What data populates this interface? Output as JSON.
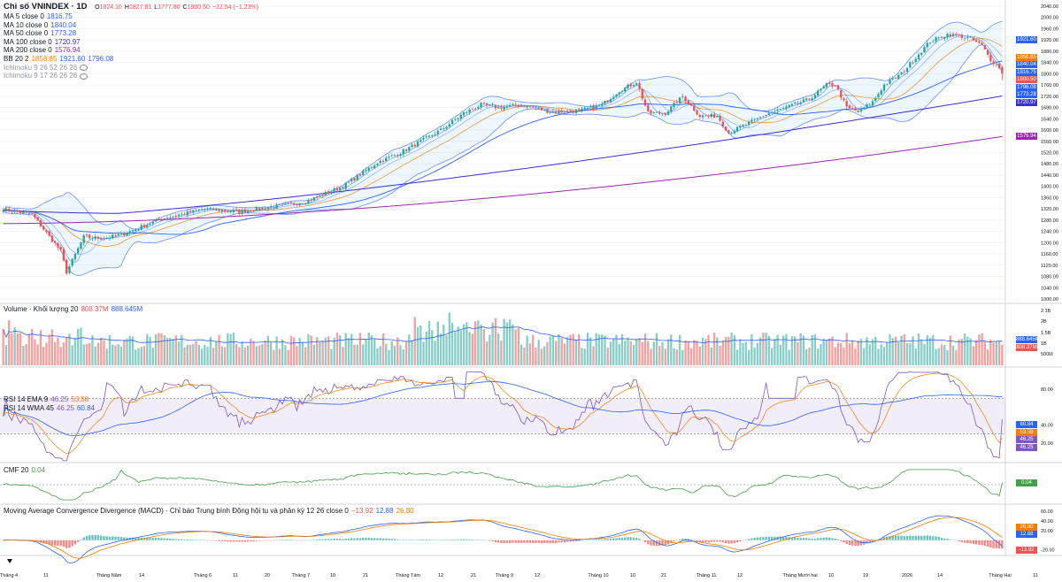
{
  "header": {
    "title": "Chỉ số VNINDEX · 1D",
    "ohlc": [
      {
        "k": "O",
        "v": "1824.10"
      },
      {
        "k": "H",
        "v": "1827.81"
      },
      {
        "k": "L",
        "v": "1777.80"
      },
      {
        "k": "C",
        "v": "1800.50"
      },
      {
        "k": "",
        "v": "−22.54 (−1.23%)"
      }
    ]
  },
  "indicators_main": [
    {
      "label": "MA 5 close 0",
      "values": [
        "1816.75"
      ],
      "color": "#2962ff"
    },
    {
      "label": "MA 10 close 0",
      "values": [
        "1840.04"
      ],
      "color": "#2962ff"
    },
    {
      "label": "MA 50 close 0",
      "values": [
        "1773.28"
      ],
      "color": "#2962ff"
    },
    {
      "label": "MA 100 close 0",
      "values": [
        "1720.97"
      ],
      "color": "#3b2fd4"
    },
    {
      "label": "MA 200 close 0",
      "values": [
        "1576.94"
      ],
      "color": "#9c27b0"
    },
    {
      "label": "BB 20 2",
      "values": [
        "1858.85",
        "1921.60",
        "1796.08"
      ],
      "colors": [
        "#f57c00",
        "#2962ff",
        "#2962ff"
      ]
    },
    {
      "label": "Ichimoku 9 26 52 26 26",
      "values": [],
      "muted": true
    },
    {
      "label": "Ichimoku 9 17 26 26 26",
      "values": [],
      "muted": true
    }
  ],
  "volume_legend": {
    "label": "Volume · Khối lượng 20",
    "values": [
      "808.37M",
      "888.645M"
    ],
    "colors": [
      "#ef5350",
      "#2962ff"
    ]
  },
  "rsi_legend": [
    {
      "label": "RSI 14 EMA 9",
      "values": [
        "46.25",
        "53.58"
      ],
      "colors": [
        "#7e57c2",
        "#f57c00"
      ]
    },
    {
      "label": "RSI 14 WMA 45",
      "values": [
        "46.25",
        "60.84"
      ],
      "colors": [
        "#7e57c2",
        "#2962ff"
      ]
    }
  ],
  "cmf_legend": {
    "label": "CMF 20",
    "values": [
      "0.04"
    ],
    "colors": [
      "#43a047"
    ]
  },
  "macd_legend": {
    "label": "Moving Average Convergence Divergence (MACD) · Chỉ báo Trung bình Động hội tụ và phân kỳ 12 26 close 0",
    "values": [
      "−13.92",
      "12.88",
      "26.80"
    ],
    "colors": [
      "#ef5350",
      "#2962ff",
      "#f57c00"
    ]
  },
  "axes": {
    "price_ticks": [
      "2040.00",
      "2000.00",
      "1960.00",
      "1920.00",
      "1880.00",
      "1840.00",
      "1800.00",
      "1760.00",
      "1720.00",
      "1680.00",
      "1640.00",
      "1600.00",
      "1560.00",
      "1520.00",
      "1480.00",
      "1440.00",
      "1400.00",
      "1360.00",
      "1320.00",
      "1280.00",
      "1240.00",
      "1200.00",
      "1160.00",
      "1120.00",
      "1080.00",
      "1040.00",
      "1000.00"
    ],
    "volume_ticks": [
      "2.1B",
      "2B",
      "1.5B",
      "1B",
      "500M"
    ],
    "rsi_ticks": [
      "80.00",
      "40.00",
      "20.00"
    ],
    "macd_ticks": [
      "60.00",
      "40.00",
      "20.00",
      "-20.00"
    ],
    "time_ticks": [
      "Tháng 4",
      "11",
      "Tháng Năm",
      "14",
      "Tháng 6",
      "11",
      "20",
      "Tháng 7",
      "10",
      "21",
      "Tháng Tám",
      "12",
      "21",
      "Tháng 9",
      "12",
      "Tháng 10",
      "10",
      "21",
      "Tháng 11",
      "12",
      "Tháng Mười hai",
      "10",
      "19",
      "2026",
      "14",
      "Tháng Hai",
      "11"
    ]
  },
  "price_tags": [
    {
      "value": "1921.60",
      "color": "#2962ff"
    },
    {
      "value": "1858.85",
      "color": "#f57c00"
    },
    {
      "value": "1840.04",
      "color": "#2962ff"
    },
    {
      "value": "1816.75",
      "color": "#2962ff"
    },
    {
      "value": "1800.50",
      "color": "#ef5350"
    },
    {
      "value": "1796.08",
      "color": "#2962ff"
    },
    {
      "value": "1773.28",
      "color": "#2962ff"
    },
    {
      "value": "1720.97",
      "color": "#3b2fd4"
    },
    {
      "value": "1576.94",
      "color": "#9c27b0"
    }
  ],
  "side_tags": {
    "volume": [
      {
        "value": "888.645M",
        "color": "#2962ff"
      },
      {
        "value": "808.37M",
        "color": "#ef5350"
      }
    ],
    "rsi": [
      {
        "value": "60.84",
        "color": "#2962ff"
      },
      {
        "value": "53.58",
        "color": "#f57c00"
      },
      {
        "value": "46.25",
        "color": "#7e57c2"
      },
      {
        "value": "46.25",
        "color": "#7e57c2"
      }
    ],
    "cmf": [
      {
        "value": "0.04",
        "color": "#43a047"
      }
    ],
    "macd": [
      {
        "value": "26.80",
        "color": "#f57c00"
      },
      {
        "value": "12.88",
        "color": "#2962ff"
      },
      {
        "value": "-13.92",
        "color": "#ef5350"
      }
    ]
  },
  "chart_data": {
    "type": "candlestick",
    "symbol": "VNINDEX",
    "interval": "1D",
    "y_range": [
      1000,
      2040
    ],
    "anchors": [
      {
        "x": 0,
        "close": 1318
      },
      {
        "x": 10,
        "close": 1300
      },
      {
        "x": 20,
        "close": 1170
      },
      {
        "x": 22,
        "close": 1095
      },
      {
        "x": 28,
        "close": 1220
      },
      {
        "x": 35,
        "close": 1215
      },
      {
        "x": 42,
        "close": 1232
      },
      {
        "x": 55,
        "close": 1285
      },
      {
        "x": 70,
        "close": 1320
      },
      {
        "x": 82,
        "close": 1310
      },
      {
        "x": 95,
        "close": 1330
      },
      {
        "x": 105,
        "close": 1345
      },
      {
        "x": 118,
        "close": 1400
      },
      {
        "x": 130,
        "close": 1485
      },
      {
        "x": 138,
        "close": 1520
      },
      {
        "x": 145,
        "close": 1560
      },
      {
        "x": 152,
        "close": 1600
      },
      {
        "x": 160,
        "close": 1660
      },
      {
        "x": 166,
        "close": 1690
      },
      {
        "x": 172,
        "close": 1680
      },
      {
        "x": 180,
        "close": 1690
      },
      {
        "x": 190,
        "close": 1665
      },
      {
        "x": 200,
        "close": 1668
      },
      {
        "x": 208,
        "close": 1690
      },
      {
        "x": 214,
        "close": 1740
      },
      {
        "x": 220,
        "close": 1770
      },
      {
        "x": 224,
        "close": 1660
      },
      {
        "x": 230,
        "close": 1660
      },
      {
        "x": 236,
        "close": 1720
      },
      {
        "x": 242,
        "close": 1650
      },
      {
        "x": 248,
        "close": 1650
      },
      {
        "x": 252,
        "close": 1590
      },
      {
        "x": 258,
        "close": 1620
      },
      {
        "x": 266,
        "close": 1660
      },
      {
        "x": 272,
        "close": 1680
      },
      {
        "x": 280,
        "close": 1710
      },
      {
        "x": 286,
        "close": 1760
      },
      {
        "x": 289,
        "close": 1760
      },
      {
        "x": 293,
        "close": 1680
      },
      {
        "x": 297,
        "close": 1665
      },
      {
        "x": 302,
        "close": 1700
      },
      {
        "x": 306,
        "close": 1760
      },
      {
        "x": 312,
        "close": 1800
      },
      {
        "x": 318,
        "close": 1870
      },
      {
        "x": 322,
        "close": 1915
      },
      {
        "x": 328,
        "close": 1940
      },
      {
        "x": 332,
        "close": 1935
      },
      {
        "x": 336,
        "close": 1925
      },
      {
        "x": 340,
        "close": 1900
      },
      {
        "x": 343,
        "close": 1850
      },
      {
        "x": 346,
        "close": 1823
      },
      {
        "x": 347,
        "close": 1800.5
      }
    ],
    "last_bar": {
      "open": 1824.1,
      "high": 1827.81,
      "low": 1777.8,
      "close": 1800.5,
      "change": -22.54,
      "change_pct": -1.23
    },
    "moving_averages": {
      "MA5": 1816.75,
      "MA10": 1840.04,
      "MA50": 1773.28,
      "MA100": 1720.97,
      "MA200": 1576.94
    },
    "bollinger": {
      "basis": 1858.85,
      "upper": 1921.6,
      "lower": 1796.08
    },
    "volume_last": {
      "value_M": 808.37,
      "ma20_M": 888.645
    },
    "rsi_last": {
      "rsi": 46.25,
      "ema9": 53.58,
      "wma45": 60.84
    },
    "cmf_last": 0.04,
    "macd_last": {
      "histogram": -13.92,
      "macd": 12.88,
      "signal": 26.8
    }
  }
}
